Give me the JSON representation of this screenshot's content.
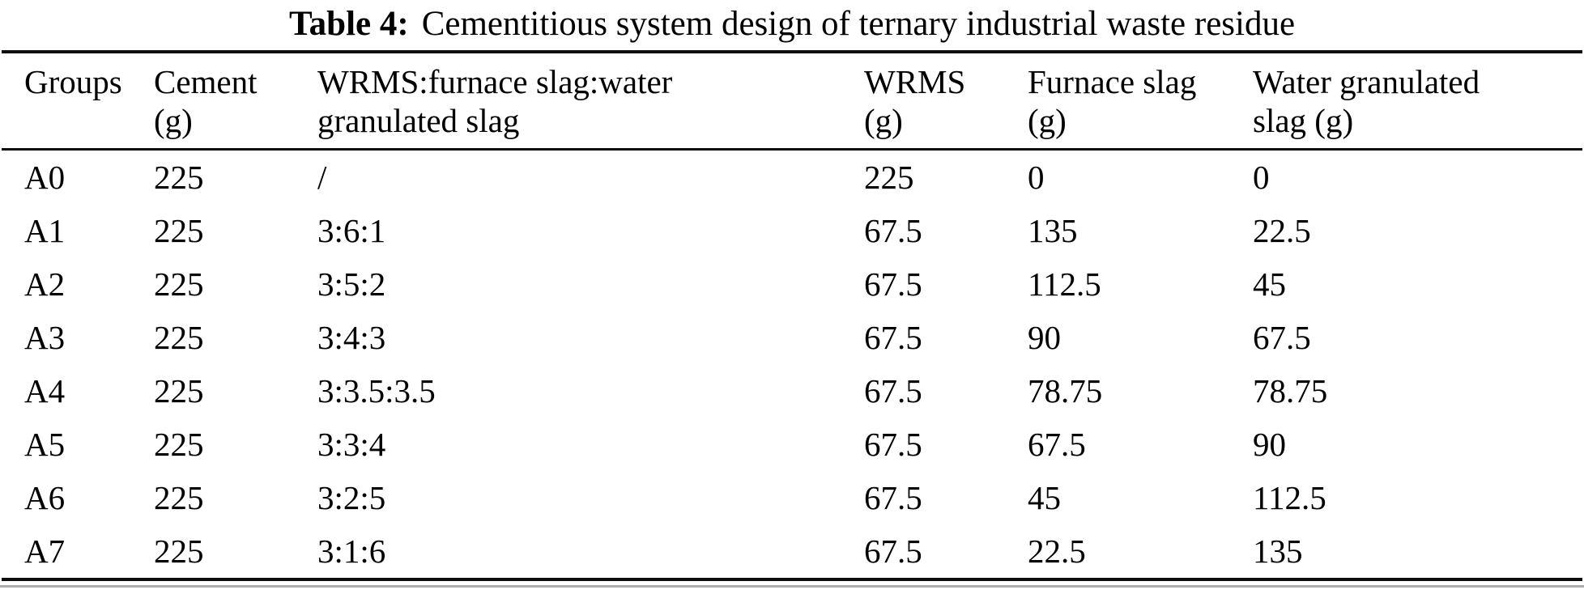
{
  "caption": {
    "label": "Table 4:",
    "text": "Cementitious system design of ternary industrial waste residue"
  },
  "table": {
    "columns": [
      {
        "line1": "Groups",
        "line2": ""
      },
      {
        "line1": "Cement",
        "line2": "(g)"
      },
      {
        "line1": "WRMS:furnace slag:water",
        "line2": "granulated slag"
      },
      {
        "line1": "WRMS",
        "line2": "(g)"
      },
      {
        "line1": "Furnace slag",
        "line2": "(g)"
      },
      {
        "line1": "Water granulated",
        "line2": "slag (g)"
      }
    ],
    "rows": [
      [
        "A0",
        "225",
        "/",
        "225",
        "0",
        "0"
      ],
      [
        "A1",
        "225",
        "3:6:1",
        "67.5",
        "135",
        "22.5"
      ],
      [
        "A2",
        "225",
        "3:5:2",
        "67.5",
        "112.5",
        "45"
      ],
      [
        "A3",
        "225",
        "3:4:3",
        "67.5",
        "90",
        "67.5"
      ],
      [
        "A4",
        "225",
        "3:3.5:3.5",
        "67.5",
        "78.75",
        "78.75"
      ],
      [
        "A5",
        "225",
        "3:3:4",
        "67.5",
        "67.5",
        "90"
      ],
      [
        "A6",
        "225",
        "3:2:5",
        "67.5",
        "45",
        "112.5"
      ],
      [
        "A7",
        "225",
        "3:1:6",
        "67.5",
        "22.5",
        "135"
      ]
    ]
  },
  "colors": {
    "rule": "#0d0d0d",
    "bottom_shadow": "#aeaeae",
    "text": "#000000",
    "background": "#ffffff"
  }
}
